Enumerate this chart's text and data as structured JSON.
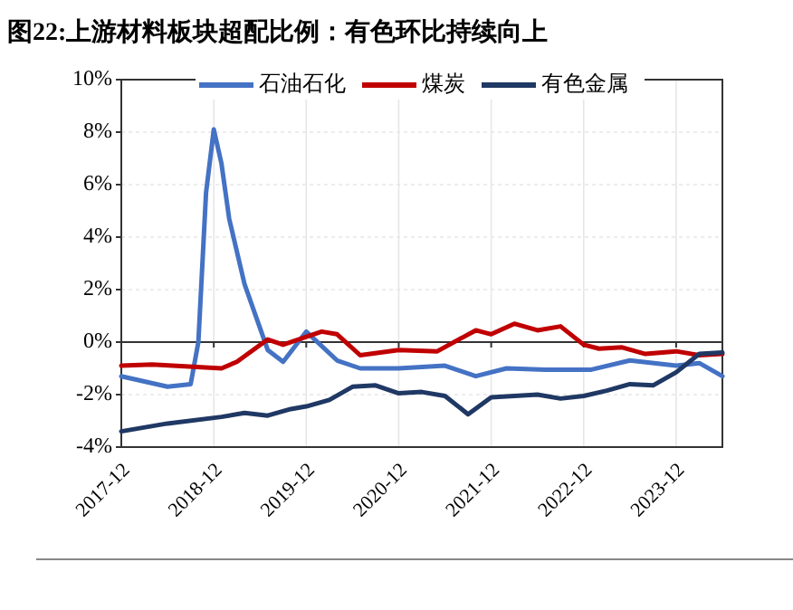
{
  "chart_data": {
    "type": "line",
    "title": "图22:上游材料板块超配比例：有色环比持续向上",
    "xlim": [
      "2017-12",
      "2024-06"
    ],
    "xticks": [
      "2017-12",
      "2018-12",
      "2019-12",
      "2020-12",
      "2021-12",
      "2022-12",
      "2023-12"
    ],
    "ylim": [
      -4,
      10
    ],
    "yticks": [
      {
        "value": -4,
        "label": "-4%"
      },
      {
        "value": -2,
        "label": "-2%"
      },
      {
        "value": 0,
        "label": "0%"
      },
      {
        "value": 2,
        "label": "2%"
      },
      {
        "value": 4,
        "label": "4%"
      },
      {
        "value": 6,
        "label": "6%"
      },
      {
        "value": 8,
        "label": "8%"
      },
      {
        "value": 10,
        "label": "10%"
      }
    ],
    "grid": true,
    "legend": "top",
    "marker": "none",
    "line_style": "solid",
    "series": [
      {
        "name": "石油石化",
        "color": "#4472c4",
        "x": [
          "2017-12",
          "2018-06",
          "2018-09",
          "2018-10",
          "2018-11",
          "2018-12",
          "2019-01",
          "2019-02",
          "2019-04",
          "2019-07",
          "2019-09",
          "2019-12",
          "2020-04",
          "2020-07",
          "2020-12",
          "2021-06",
          "2021-10",
          "2022-02",
          "2022-07",
          "2023-01",
          "2023-06",
          "2023-12",
          "2024-03",
          "2024-06"
        ],
        "values": [
          -1.3,
          -1.7,
          -1.6,
          0.0,
          5.7,
          8.1,
          6.8,
          4.7,
          2.2,
          -0.3,
          -0.75,
          0.4,
          -0.7,
          -1.0,
          -1.0,
          -0.9,
          -1.3,
          -1.0,
          -1.05,
          -1.05,
          -0.7,
          -0.9,
          -0.8,
          -1.3
        ]
      },
      {
        "name": "煤炭",
        "color": "#c00000",
        "x": [
          "2017-12",
          "2018-04",
          "2019-01",
          "2019-03",
          "2019-07",
          "2019-09",
          "2020-02",
          "2020-04",
          "2020-07",
          "2020-12",
          "2021-05",
          "2021-10",
          "2021-12",
          "2022-03",
          "2022-06",
          "2022-09",
          "2022-12",
          "2023-02",
          "2023-05",
          "2023-08",
          "2023-12",
          "2024-03",
          "2024-06"
        ],
        "values": [
          -0.9,
          -0.85,
          -1.0,
          -0.75,
          0.1,
          -0.1,
          0.4,
          0.3,
          -0.5,
          -0.3,
          -0.35,
          0.45,
          0.3,
          0.7,
          0.45,
          0.6,
          -0.1,
          -0.25,
          -0.2,
          -0.45,
          -0.35,
          -0.5,
          -0.45
        ]
      },
      {
        "name": "有色金属",
        "color": "#1f3864",
        "x": [
          "2017-12",
          "2018-06",
          "2019-01",
          "2019-04",
          "2019-07",
          "2019-10",
          "2019-12",
          "2020-03",
          "2020-06",
          "2020-09",
          "2020-12",
          "2021-03",
          "2021-06",
          "2021-09",
          "2021-12",
          "2022-03",
          "2022-06",
          "2022-09",
          "2022-12",
          "2023-03",
          "2023-06",
          "2023-09",
          "2023-12",
          "2024-03",
          "2024-06"
        ],
        "values": [
          -3.4,
          -3.1,
          -2.85,
          -2.7,
          -2.8,
          -2.55,
          -2.45,
          -2.2,
          -1.7,
          -1.65,
          -1.95,
          -1.9,
          -2.05,
          -2.75,
          -2.1,
          -2.05,
          -2.0,
          -2.15,
          -2.05,
          -1.85,
          -1.6,
          -1.65,
          -1.15,
          -0.45,
          -0.4
        ]
      }
    ]
  }
}
